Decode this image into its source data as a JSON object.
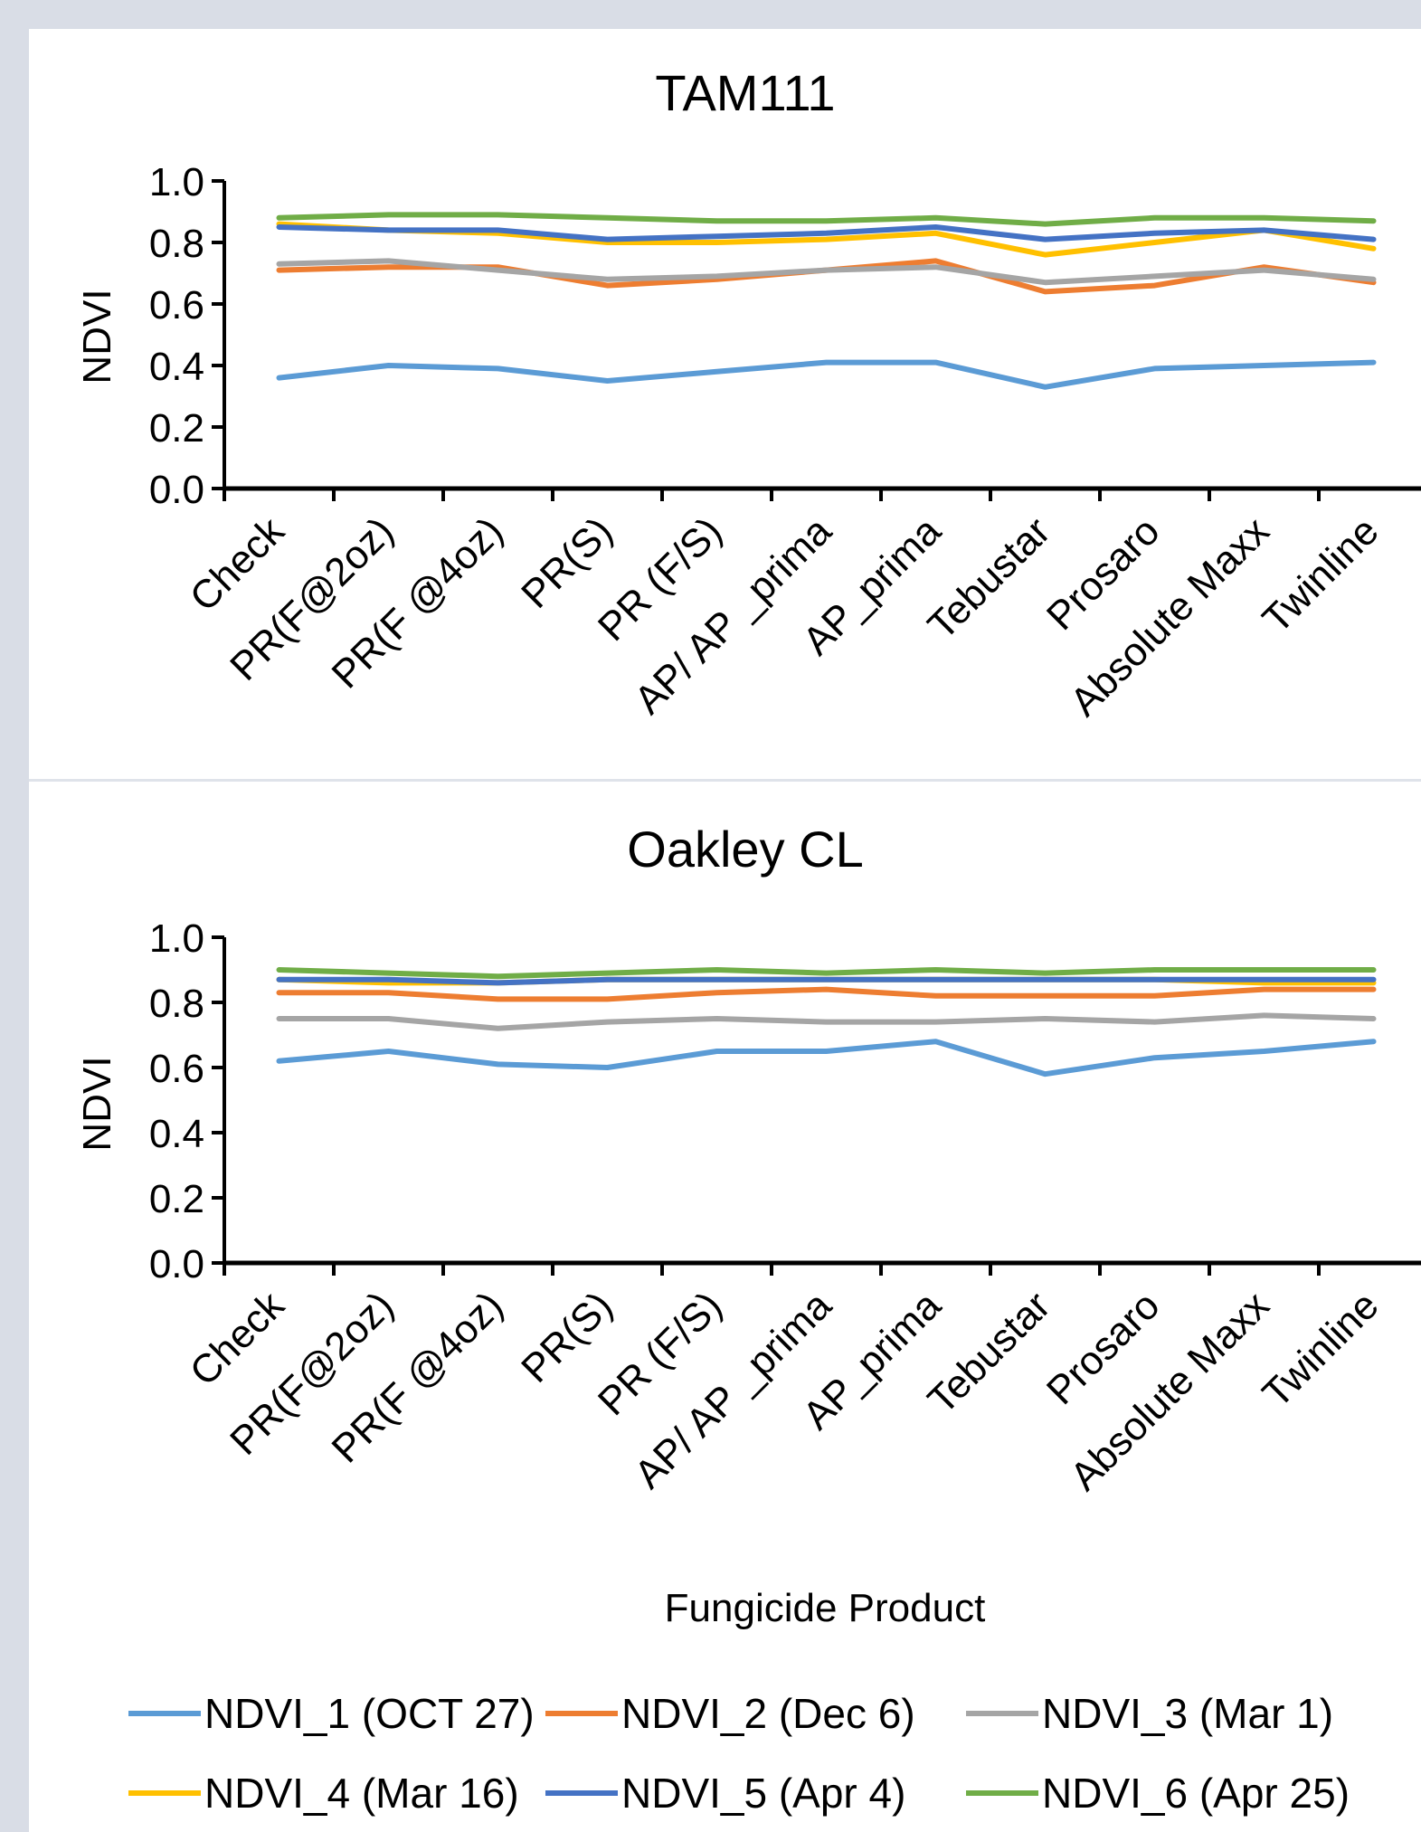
{
  "chart_data": [
    {
      "type": "line",
      "title": "TAM111",
      "ylabel": "NDVI",
      "xlabel": "",
      "ylim": [
        0,
        1
      ],
      "yticks": [
        "0.0",
        "0.2",
        "0.4",
        "0.6",
        "0.8",
        "1.0"
      ],
      "categories": [
        "Check",
        "PR(F@2oz)",
        "PR(F @4oz)",
        "PR(S)",
        "PR (F/S)",
        "AP/ AP _prima",
        "AP_prima",
        "Tebustar",
        "Prosaro",
        "Absolute Maxx",
        "Twinline"
      ],
      "series": [
        {
          "name": "NDVI_1 (OCT 27)",
          "color": "#5b9bd5",
          "values": [
            0.36,
            0.4,
            0.39,
            0.35,
            0.38,
            0.41,
            0.41,
            0.33,
            0.39,
            0.4,
            0.41
          ]
        },
        {
          "name": "NDVI_2 (Dec 6)",
          "color": "#ed7d31",
          "values": [
            0.71,
            0.72,
            0.72,
            0.66,
            0.68,
            0.71,
            0.74,
            0.64,
            0.66,
            0.72,
            0.67
          ]
        },
        {
          "name": "NDVI_3 (Mar 1)",
          "color": "#a5a5a5",
          "values": [
            0.73,
            0.74,
            0.71,
            0.68,
            0.69,
            0.71,
            0.72,
            0.67,
            0.69,
            0.71,
            0.68
          ]
        },
        {
          "name": "NDVI_4 (Mar 16)",
          "color": "#ffc000",
          "values": [
            0.86,
            0.84,
            0.83,
            0.8,
            0.8,
            0.81,
            0.83,
            0.76,
            0.8,
            0.84,
            0.78
          ]
        },
        {
          "name": "NDVI_5 (Apr 4)",
          "color": "#4472c4",
          "values": [
            0.85,
            0.84,
            0.84,
            0.81,
            0.82,
            0.83,
            0.85,
            0.81,
            0.83,
            0.84,
            0.81
          ]
        },
        {
          "name": "NDVI_6 (Apr 25)",
          "color": "#70ad47",
          "values": [
            0.88,
            0.89,
            0.89,
            0.88,
            0.87,
            0.87,
            0.88,
            0.86,
            0.88,
            0.88,
            0.87
          ]
        }
      ]
    },
    {
      "type": "line",
      "title": "Oakley CL",
      "ylabel": "NDVI",
      "xlabel": "Fungicide Product",
      "ylim": [
        0,
        1
      ],
      "yticks": [
        "0.0",
        "0.2",
        "0.4",
        "0.6",
        "0.8",
        "1.0"
      ],
      "categories": [
        "Check",
        "PR(F@2oz)",
        "PR(F @4oz)",
        "PR(S)",
        "PR (F/S)",
        "AP/ AP _prima",
        "AP_prima",
        "Tebustar",
        "Prosaro",
        "Absolute Maxx",
        "Twinline"
      ],
      "series": [
        {
          "name": "NDVI_1 (OCT 27)",
          "color": "#5b9bd5",
          "values": [
            0.62,
            0.65,
            0.61,
            0.6,
            0.65,
            0.65,
            0.68,
            0.58,
            0.63,
            0.65,
            0.68
          ]
        },
        {
          "name": "NDVI_2 (Dec 6)",
          "color": "#ed7d31",
          "values": [
            0.83,
            0.83,
            0.81,
            0.81,
            0.83,
            0.84,
            0.82,
            0.82,
            0.82,
            0.84,
            0.84
          ]
        },
        {
          "name": "NDVI_3 (Mar 1)",
          "color": "#a5a5a5",
          "values": [
            0.75,
            0.75,
            0.72,
            0.74,
            0.75,
            0.74,
            0.74,
            0.75,
            0.74,
            0.76,
            0.75
          ]
        },
        {
          "name": "NDVI_4 (Mar 16)",
          "color": "#ffc000",
          "values": [
            0.87,
            0.86,
            0.86,
            0.87,
            0.87,
            0.87,
            0.87,
            0.87,
            0.87,
            0.86,
            0.86
          ]
        },
        {
          "name": "NDVI_5 (Apr 4)",
          "color": "#4472c4",
          "values": [
            0.87,
            0.87,
            0.86,
            0.87,
            0.87,
            0.87,
            0.87,
            0.87,
            0.87,
            0.87,
            0.87
          ]
        },
        {
          "name": "NDVI_6 (Apr 25)",
          "color": "#70ad47",
          "values": [
            0.9,
            0.89,
            0.88,
            0.89,
            0.9,
            0.89,
            0.9,
            0.89,
            0.9,
            0.9,
            0.9
          ]
        }
      ]
    }
  ],
  "legend": [
    {
      "label": "NDVI_1 (OCT 27)",
      "color": "#5b9bd5"
    },
    {
      "label": "NDVI_2 (Dec 6)",
      "color": "#ed7d31"
    },
    {
      "label": "NDVI_3 (Mar 1)",
      "color": "#a5a5a5"
    },
    {
      "label": "NDVI_4 (Mar 16)",
      "color": "#ffc000"
    },
    {
      "label": "NDVI_5 (Apr 4)",
      "color": "#4472c4"
    },
    {
      "label": "NDVI_6 (Apr 25)",
      "color": "#70ad47"
    }
  ]
}
